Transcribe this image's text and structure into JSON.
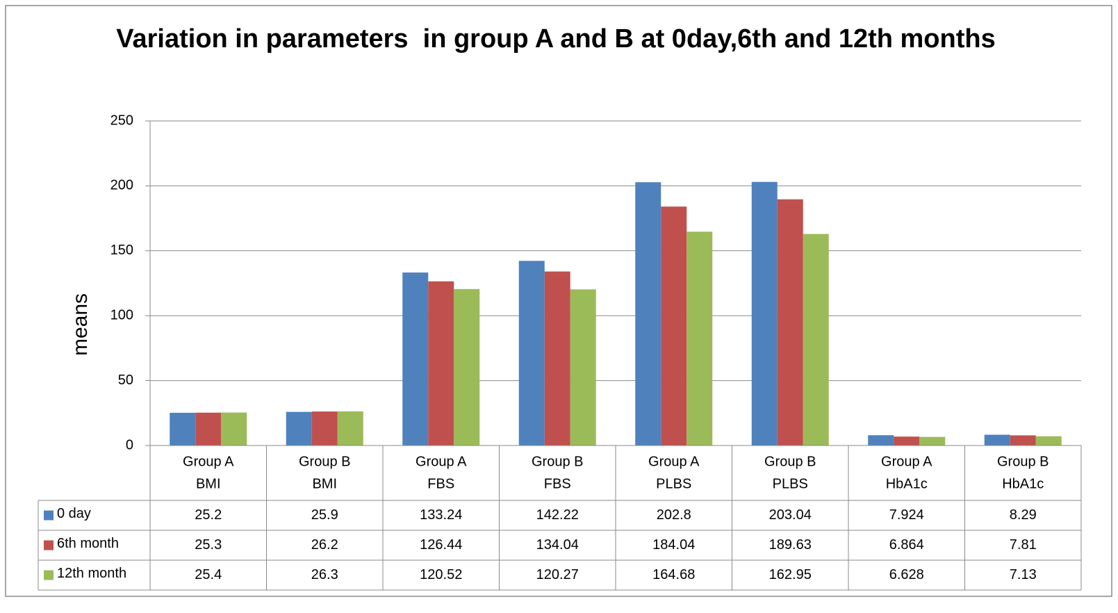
{
  "chart_data": {
    "type": "bar",
    "title": "Variation in parameters  in group A and B at 0day,6th and 12th months",
    "y_label": "means",
    "categories": [
      [
        "Group A",
        "BMI"
      ],
      [
        "Group B",
        "BMI"
      ],
      [
        "Group A",
        "FBS"
      ],
      [
        "Group B",
        "FBS"
      ],
      [
        "Group A",
        "PLBS"
      ],
      [
        "Group B",
        "PLBS"
      ],
      [
        "Group A",
        "HbA1c"
      ],
      [
        "Group B",
        "HbA1c"
      ]
    ],
    "series": [
      {
        "name": "0 day",
        "color": "#4f81bd",
        "values": [
          25.2,
          25.9,
          133.24,
          142.22,
          202.8,
          203.04,
          7.924,
          8.29
        ]
      },
      {
        "name": "6th month",
        "color": "#c0504d",
        "values": [
          25.3,
          26.2,
          126.44,
          134.04,
          184.04,
          189.63,
          6.864,
          7.81
        ]
      },
      {
        "name": "12th month",
        "color": "#9bbb59",
        "values": [
          25.4,
          26.3,
          120.52,
          120.27,
          164.68,
          162.95,
          6.628,
          7.13
        ]
      }
    ],
    "ylim": [
      0,
      250
    ],
    "yticks": [
      0,
      50,
      100,
      150,
      200,
      250
    ],
    "grid": true
  }
}
